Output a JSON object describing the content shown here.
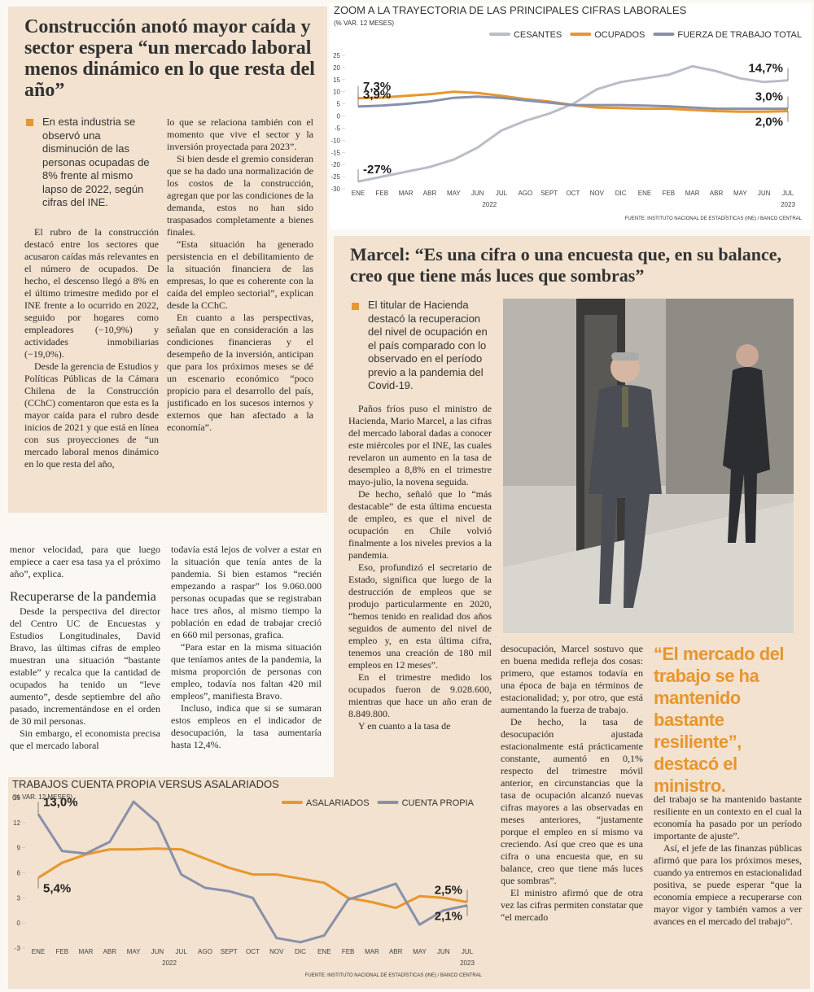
{
  "construction": {
    "headline": "Construcción anotó mayor caída y sector espera “un mercado laboral menos dinámico en lo que resta del año”",
    "lead": "En esta industria se observó una disminución de las personas ocupadas de 8% frente al mismo lapso de 2022, según cifras del INE.",
    "column_1": [
      "El rubro de la construcción destacó entre los sectores que acusaron caídas más relevantes en el número de ocupados. De hecho, el descenso llegó a 8% en el último trimestre medido por el INE frente a lo ocurrido en 2022, seguido por hogares como empleadores (−10,9%) y actividades inmobiliarias (−19,0%).",
      "Desde la gerencia de Estudios y Políticas Públicas de la Cámara Chilena de la Construcción (CChC) comentaron que esta es la mayor caída para el rubro desde inicios de 2021 y que está en línea con sus proyecciones de “un mercado laboral menos dinámico en lo que resta del año,"
    ],
    "column_2": [
      "lo que se relaciona también con el momento que vive el sector y la inversión proyectada para 2023”.",
      "Si bien desde el gremio consideran que se ha dado una normalización de los costos de la construcción, agregan que por las condiciones de la demanda, estos no han sido traspasados completamente a bienes finales.",
      "“Esta situación ha generado persistencia en el debilitamiento de la situación financiera de las empresas, lo que es coherente con la caída del empleo sectorial”, explican desde la CChC.",
      "En cuanto a las perspectivas, señalan que en consideración a las condiciones financieras y el desempeño de la inversión, anticipan que para los próximos meses se dé un escenario económico “poco propicio para el desarrollo del país, justificado en los sucesos internos y externos que han afectado a la economía”."
    ]
  },
  "bravo": {
    "intro": "menor velocidad, para que luego empiece a caer esa tasa ya el próximo año”, explica.",
    "subhead": "Recuperarse de la pandemia",
    "column_1": [
      "Desde la perspectiva del director del Centro UC de Encuestas y Estudios Longitudinales, David Bravo, las últimas cifras de empleo muestran una situación “bastante estable” y recalca que la cantidad de ocupados ha tenido un “leve aumento”, desde septiembre del año pasado, incrementándose en el orden de 30 mil personas.",
      "Sin embargo, el economista precisa que el mercado laboral"
    ],
    "column_2": [
      "todavía está lejos de volver a estar en la situación que tenía antes de la pandemia. Si bien estamos “recién empezando a raspar” los 9.060.000 personas ocupadas que se registraban hace tres años, al mismo tiempo la población en edad de trabajar creció en 660 mil personas, grafica.",
      "“Para estar en la misma situación que teníamos antes de la pandemia, la misma proporción de personas con empleo, todavía nos faltan 420 mil empleos”, manifiesta Bravo.",
      "Incluso, indica que si se sumaran estos empleos en el indicador de desocupación, la tasa aumentaría hasta 12,4%."
    ]
  },
  "marcel": {
    "headline": "Marcel: “Es una cifra o una encuesta que, en su balance, creo que tiene más luces que sombras”",
    "lead": "El titular de Hacienda destacó la recuperacion del nivel de ocupación en el país comparado con lo observado en el período previo a la pandemia del Covid-19.",
    "column_1": [
      "Paños fríos puso el ministro de Hacienda, Mario Marcel, a las cifras del mercado laboral dadas a conocer este miércoles por el INE, las cuales revelaron un aumento en la tasa de desempleo a 8,8% en el trimestre mayo-julio, la novena seguida.",
      "De hecho, señaló que lo “más destacable” de esta última encuesta de empleo, es que el nivel de ocupación en Chile volvió finalmente a los niveles previos a la pandemia.",
      "Eso, profundizó el secretario de Estado, significa que luego de la destrucción de empleos que se produjo particularmente en 2020, “hemos tenido en realidad dos años seguidos de aumento del nivel de empleo y, en esta última cifra, tenemos una creación de 180 mil empleos en 12 meses”.",
      "En el trimestre medido los ocupados fueron de 9.028.600, mientras que hace un año eran de 8.849.800.",
      "Y en cuanto a la tasa de"
    ],
    "column_2": [
      "desocupación, Marcel sostuvo que en buena medida refleja dos cosas: primero, que estamos todavía en una época de baja en términos de estacionalidad; y, por otro, que está aumentando la fuerza de trabajo.",
      "De hecho, la tasa de desocupación ajustada estacionalmente está prácticamente constante, aumentó en 0,1% respecto del trimestre móvil anterior, en circunstancias que la tasa de ocupación alcanzó nuevas cifras mayores a las observadas en meses anteriores, “justamente porque el empleo en sí mismo va creciendo. Así que creo que es una cifra o una encuesta que, en su balance, creo que tiene más luces que sombras”.",
      "El ministro afirmó que de otra vez las cifras permiten constatar que “el mercado"
    ],
    "quote": "“El mercado del trabajo se ha mantenido bastante resiliente”, destacó el ministro.",
    "column_3": [
      "del trabajo se ha mantenido bastante resiliente en un contexto en el cual la economía ha pasado por un período importante de ajuste”.",
      "Así, el jefe de las finanzas públicas afirmó que para los próximos meses, cuando ya entremos en estacionalidad positiva, se puede esperar “que la economía empiece a recuperarse con mayor vigor y también vamos a ver avances en el mercado del trabajo”."
    ]
  },
  "chart_data": [
    {
      "type": "line",
      "title": "ZOOM A LA TRAYECTORIA DE LAS PRINCIPALES CIFRAS LABORALES",
      "subtitle": "(% VAR. 12 MESES)",
      "source": "FUENTE: INSTITUTO NACIONAL DE ESTADÍSTICAS (INE) / BANCO CENTRAL",
      "categories": [
        "ENE",
        "FEB",
        "MAR",
        "ABR",
        "MAY",
        "JUN",
        "JUL",
        "AGO",
        "SEPT",
        "OCT",
        "NOV",
        "DIC",
        "ENE",
        "FEB",
        "MAR",
        "ABR",
        "MAY",
        "JUN",
        "JUL"
      ],
      "year_labels": [
        "2022",
        "2023"
      ],
      "legend": "top-right",
      "grid": false,
      "ylim": [
        -30,
        25
      ],
      "yticks": [
        -30,
        -25,
        -20,
        -15,
        -10,
        -5,
        0,
        5,
        10,
        15,
        20,
        25
      ],
      "series": [
        {
          "name": "CESANTES",
          "color": "#b9bdc6",
          "values": [
            -27,
            -25,
            -23,
            -21,
            -18,
            -13,
            -6,
            -2,
            1,
            5,
            11,
            14,
            15.5,
            17,
            20.5,
            18.5,
            15.5,
            14,
            14.7
          ],
          "value_labels": [
            "-27%",
            null,
            null,
            null,
            null,
            null,
            null,
            null,
            null,
            null,
            null,
            null,
            null,
            null,
            null,
            null,
            null,
            null,
            "14,7%"
          ]
        },
        {
          "name": "OCUPADOS",
          "color": "#e8962e",
          "values": [
            7.3,
            7.6,
            8.3,
            9,
            10,
            9.5,
            8.3,
            7,
            6,
            4.5,
            3.5,
            3.3,
            3,
            3,
            2.5,
            2,
            1.8,
            1.8,
            2.0
          ],
          "value_labels": [
            "7,3%",
            null,
            null,
            null,
            null,
            null,
            null,
            null,
            null,
            null,
            null,
            null,
            null,
            null,
            null,
            null,
            null,
            null,
            "2,0%"
          ]
        },
        {
          "name": "FUERZA DE TRABAJO TOTAL",
          "color": "#8990a9",
          "values": [
            3.9,
            4.3,
            5,
            6,
            7.5,
            8,
            7.5,
            6.5,
            5.5,
            4.5,
            4.5,
            4.5,
            4.3,
            4,
            3.5,
            3,
            3,
            3,
            3.0
          ],
          "value_labels": [
            "3,9%",
            null,
            null,
            null,
            null,
            null,
            null,
            null,
            null,
            null,
            null,
            null,
            null,
            null,
            null,
            null,
            null,
            null,
            "3,0%"
          ]
        }
      ]
    },
    {
      "type": "line",
      "title": "TRABAJOS CUENTA PROPIA VERSUS ASALARIADOS",
      "subtitle": "(% VAR. 12 MESES)",
      "source": "FUENTE: INSTITUTO NACIONAL DE ESTADÍSTICAS (INE) / BANCO CENTRAL",
      "categories": [
        "ENE",
        "FEB",
        "MAR",
        "ABR",
        "MAY",
        "JUN",
        "JUL",
        "AGO",
        "SEPT",
        "OCT",
        "NOV",
        "DIC",
        "ENE",
        "FEB",
        "MAR",
        "ABR",
        "MAY",
        "JUN",
        "JUL"
      ],
      "year_labels": [
        "2022",
        "2023"
      ],
      "legend": "top-right",
      "grid": false,
      "ylim": [
        -3,
        15
      ],
      "yticks": [
        -3,
        0,
        3,
        6,
        9,
        12,
        15
      ],
      "series": [
        {
          "name": "ASALARIADOS",
          "color": "#e8962e",
          "values": [
            5.4,
            7.2,
            8.2,
            8.8,
            8.8,
            8.9,
            8.8,
            7.7,
            6.6,
            5.8,
            5.8,
            5.3,
            4.8,
            3.0,
            2.5,
            1.8,
            3.2,
            3.0,
            2.5
          ],
          "value_labels": [
            "5,4%",
            null,
            null,
            null,
            null,
            null,
            null,
            null,
            null,
            null,
            null,
            null,
            null,
            null,
            null,
            null,
            null,
            null,
            "2,5%"
          ]
        },
        {
          "name": "CUENTA PROPIA",
          "color": "#8990a9",
          "values": [
            13.0,
            8.6,
            8.3,
            9.7,
            14.5,
            12,
            5.8,
            4.2,
            3.8,
            3.0,
            -1.8,
            -2.3,
            -1.5,
            2.8,
            3.7,
            4.7,
            -0.2,
            1.5,
            2.1
          ],
          "value_labels": [
            "13,0%",
            null,
            null,
            null,
            null,
            null,
            null,
            null,
            null,
            null,
            null,
            null,
            null,
            null,
            null,
            null,
            null,
            null,
            "2,1%"
          ]
        }
      ]
    }
  ]
}
